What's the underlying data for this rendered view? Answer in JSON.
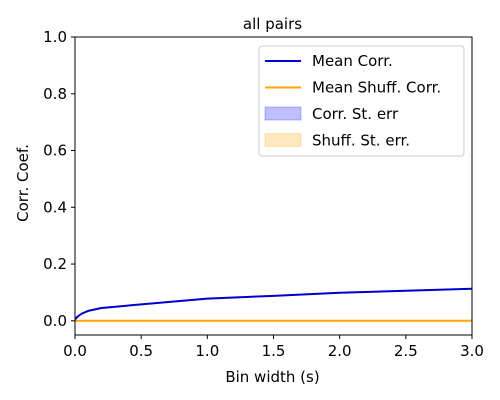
{
  "chart_data": {
    "type": "line",
    "title": "all pairs",
    "xlabel": "Bin width (s)",
    "ylabel": "Corr. Coef.",
    "xlim": [
      0.0,
      3.0
    ],
    "ylim": [
      -0.05,
      1.0
    ],
    "xticks": [
      "0.0",
      "0.5",
      "1.0",
      "1.5",
      "2.0",
      "2.5",
      "3.0"
    ],
    "yticks": [
      "0.0",
      "0.2",
      "0.4",
      "0.6",
      "0.8",
      "1.0"
    ],
    "grid": false,
    "legend_position": "top-right",
    "series": [
      {
        "name": "Mean Corr.",
        "color": "#0000cc",
        "x": [
          0.0,
          0.02,
          0.05,
          0.1,
          0.2,
          0.5,
          1.0,
          1.5,
          2.0,
          2.5,
          3.0
        ],
        "y": [
          0.005,
          0.015,
          0.025,
          0.035,
          0.045,
          0.058,
          0.078,
          0.088,
          0.099,
          0.106,
          0.113
        ]
      },
      {
        "name": "Mean Shuff. Corr.",
        "color": "#ffa500",
        "x": [
          0.0,
          3.0
        ],
        "y": [
          0.0,
          0.0
        ]
      }
    ],
    "bands": [
      {
        "name": "Corr. St. err",
        "color": "#0000ff"
      },
      {
        "name": "Shuff. St. err.",
        "color": "#ffa500"
      }
    ]
  }
}
